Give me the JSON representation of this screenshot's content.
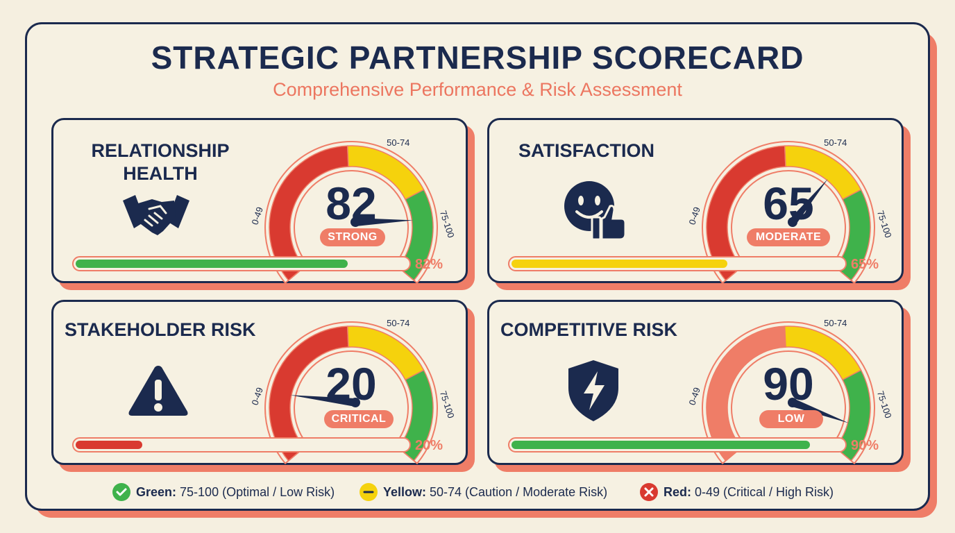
{
  "header": {
    "title": "STRATEGIC PARTNERSHIP SCORECARD",
    "subtitle": "Comprehensive Performance & Risk Assessment"
  },
  "colors": {
    "navy": "#1b2a4e",
    "coral": "#ef7d67",
    "green": "#3fb24b",
    "yellow": "#f5d20d",
    "red": "#d93a30",
    "cream": "#f6f1e2"
  },
  "range_labels": {
    "red": "0-49",
    "yellow": "50-74",
    "green": "75-100"
  },
  "cards": [
    {
      "title_lines": [
        "RELATIONSHIP",
        "HEALTH"
      ],
      "icon": "handshake-icon",
      "value": 82,
      "value_label": "82",
      "status": "STRONG",
      "percent_label": "82%",
      "bar_color": "#3fb24b",
      "red_zone_color": "#d93a30"
    },
    {
      "title_lines": [
        "SATISFACTION"
      ],
      "icon": "smiley-thumbs-up-icon",
      "value": 65,
      "value_label": "65",
      "status": "MODERATE",
      "percent_label": "65%",
      "bar_color": "#f5d20d",
      "red_zone_color": "#d93a30"
    },
    {
      "title_lines": [
        "STAKEHOLDER RISK"
      ],
      "icon": "warning-triangle-icon",
      "value": 20,
      "value_label": "20",
      "status": "CRITICAL",
      "percent_label": "20%",
      "bar_color": "#d93a30",
      "red_zone_color": "#d93a30"
    },
    {
      "title_lines": [
        "COMPETITIVE RISK"
      ],
      "icon": "shield-bolt-icon",
      "value": 90,
      "value_label": "90",
      "status": "LOW",
      "percent_label": "90%",
      "bar_color": "#3fb24b",
      "red_zone_color": "#ef7d67"
    }
  ],
  "legend": [
    {
      "label": "Green:",
      "text": "75-100 (Optimal / Low Risk)",
      "color": "#3fb24b",
      "icon": "check-icon"
    },
    {
      "label": "Yellow:",
      "text": "50-74 (Caution / Moderate Risk)",
      "color": "#f5d20d",
      "icon": "minus-icon"
    },
    {
      "label": "Red:",
      "text": "0-49 (Critical / High Risk)",
      "color": "#d93a30",
      "icon": "x-icon"
    }
  ]
}
